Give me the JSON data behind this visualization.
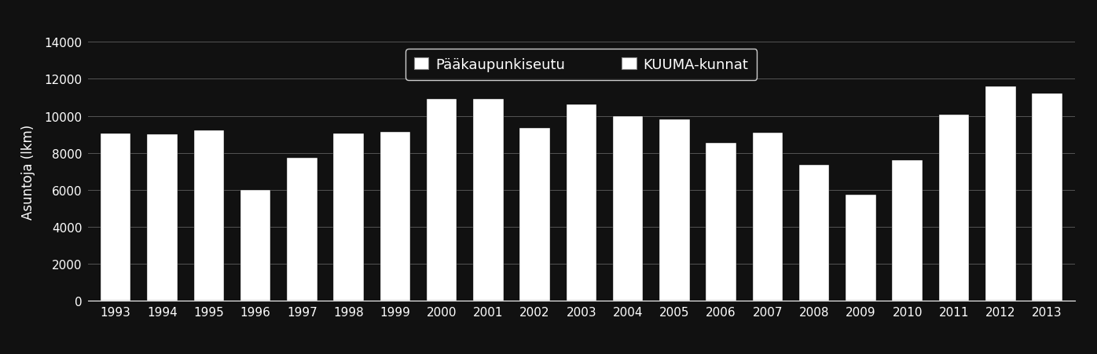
{
  "years": [
    1993,
    1994,
    1995,
    1996,
    1997,
    1998,
    1999,
    2000,
    2001,
    2002,
    2003,
    2004,
    2005,
    2006,
    2007,
    2008,
    2009,
    2010,
    2011,
    2012,
    2013
  ],
  "values": [
    9050,
    9000,
    9200,
    6000,
    7750,
    9050,
    9150,
    10900,
    10900,
    9350,
    10600,
    10000,
    9800,
    8550,
    9100,
    7350,
    5750,
    7600,
    10050,
    11600,
    11200
  ],
  "bar_color": "#ffffff",
  "background_color": "#111111",
  "text_color": "#ffffff",
  "grid_color": "#555555",
  "ylabel": "Asuntoja (lkm)",
  "ylim": [
    0,
    14000
  ],
  "yticks": [
    0,
    2000,
    4000,
    6000,
    8000,
    10000,
    12000,
    14000
  ],
  "legend_labels": [
    "Pääkaupunkiseutu",
    "KUUMA-kunnat"
  ],
  "legend_colors": [
    "#ffffff",
    "#ffffff"
  ],
  "title_fontsize": 13,
  "axis_fontsize": 12,
  "tick_fontsize": 11,
  "bar_width": 0.65
}
